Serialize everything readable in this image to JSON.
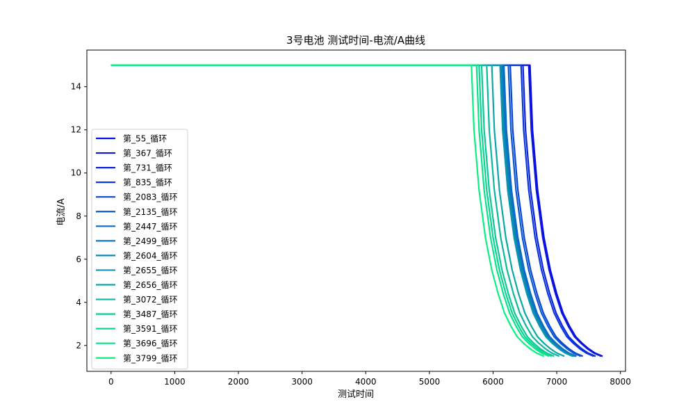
{
  "chart_data": {
    "type": "line",
    "title": "3号电池 测试时间-电流/A曲线",
    "xlabel": "测试时间",
    "ylabel": "电流/A",
    "xlim": [
      -380,
      8080
    ],
    "ylim": [
      0.8,
      15.7
    ],
    "xticks": [
      0,
      1000,
      2000,
      3000,
      4000,
      5000,
      6000,
      7000,
      8000
    ],
    "yticks": [
      2,
      4,
      6,
      8,
      10,
      12,
      14
    ],
    "grid": false,
    "legend_position": "lower-left",
    "series": [
      {
        "name": "第_55_循环",
        "color": "#0a0ce0",
        "values": [
          [
            0,
            15
          ],
          [
            6580,
            15
          ],
          [
            6620,
            12
          ],
          [
            6700,
            9.2
          ],
          [
            6800,
            7.0
          ],
          [
            6900,
            5.5
          ],
          [
            7000,
            4.4
          ],
          [
            7100,
            3.5
          ],
          [
            7200,
            2.9
          ],
          [
            7300,
            2.4
          ],
          [
            7400,
            2.1
          ],
          [
            7500,
            1.85
          ],
          [
            7600,
            1.65
          ],
          [
            7720,
            1.5
          ]
        ]
      },
      {
        "name": "第_367_循环",
        "color": "#0a18e0",
        "values": [
          [
            0,
            15
          ],
          [
            6560,
            15
          ],
          [
            6600,
            12
          ],
          [
            6680,
            9.2
          ],
          [
            6780,
            7.0
          ],
          [
            6880,
            5.5
          ],
          [
            6980,
            4.4
          ],
          [
            7080,
            3.5
          ],
          [
            7180,
            2.9
          ],
          [
            7280,
            2.4
          ],
          [
            7380,
            2.1
          ],
          [
            7480,
            1.85
          ],
          [
            7580,
            1.65
          ],
          [
            7700,
            1.5
          ]
        ]
      },
      {
        "name": "第_731_循环",
        "color": "#0a24e0",
        "values": [
          [
            0,
            15
          ],
          [
            6470,
            15
          ],
          [
            6510,
            12
          ],
          [
            6590,
            9.2
          ],
          [
            6690,
            7.0
          ],
          [
            6790,
            5.5
          ],
          [
            6890,
            4.4
          ],
          [
            6990,
            3.5
          ],
          [
            7090,
            2.9
          ],
          [
            7190,
            2.4
          ],
          [
            7290,
            2.1
          ],
          [
            7390,
            1.85
          ],
          [
            7490,
            1.65
          ],
          [
            7610,
            1.5
          ]
        ]
      },
      {
        "name": "第_835_循环",
        "color": "#0a36dc",
        "values": [
          [
            0,
            15
          ],
          [
            6440,
            15
          ],
          [
            6480,
            12
          ],
          [
            6560,
            9.2
          ],
          [
            6660,
            7.0
          ],
          [
            6760,
            5.5
          ],
          [
            6860,
            4.4
          ],
          [
            6960,
            3.5
          ],
          [
            7060,
            2.9
          ],
          [
            7160,
            2.4
          ],
          [
            7260,
            2.1
          ],
          [
            7360,
            1.85
          ],
          [
            7460,
            1.65
          ],
          [
            7580,
            1.5
          ]
        ]
      },
      {
        "name": "第_2083_循环",
        "color": "#0a46d6",
        "values": [
          [
            0,
            15
          ],
          [
            6270,
            15
          ],
          [
            6310,
            12
          ],
          [
            6390,
            9.2
          ],
          [
            6490,
            7.0
          ],
          [
            6590,
            5.5
          ],
          [
            6690,
            4.4
          ],
          [
            6790,
            3.5
          ],
          [
            6890,
            2.9
          ],
          [
            6990,
            2.4
          ],
          [
            7090,
            2.1
          ],
          [
            7190,
            1.85
          ],
          [
            7290,
            1.65
          ],
          [
            7410,
            1.5
          ]
        ]
      },
      {
        "name": "第_2135_循环",
        "color": "#0a56d0",
        "values": [
          [
            0,
            15
          ],
          [
            6240,
            15
          ],
          [
            6280,
            12
          ],
          [
            6360,
            9.2
          ],
          [
            6460,
            7.0
          ],
          [
            6560,
            5.5
          ],
          [
            6660,
            4.4
          ],
          [
            6760,
            3.5
          ],
          [
            6860,
            2.9
          ],
          [
            6960,
            2.4
          ],
          [
            7060,
            2.1
          ],
          [
            7160,
            1.85
          ],
          [
            7260,
            1.65
          ],
          [
            7380,
            1.5
          ]
        ]
      },
      {
        "name": "第_2447_循环",
        "color": "#0a66c8",
        "values": [
          [
            0,
            15
          ],
          [
            6170,
            15
          ],
          [
            6210,
            12
          ],
          [
            6290,
            9.2
          ],
          [
            6390,
            7.0
          ],
          [
            6490,
            5.5
          ],
          [
            6590,
            4.4
          ],
          [
            6690,
            3.5
          ],
          [
            6790,
            2.9
          ],
          [
            6890,
            2.4
          ],
          [
            6990,
            2.1
          ],
          [
            7090,
            1.85
          ],
          [
            7190,
            1.65
          ],
          [
            7310,
            1.5
          ]
        ]
      },
      {
        "name": "第_2499_循环",
        "color": "#0a76c0",
        "values": [
          [
            0,
            15
          ],
          [
            6150,
            15
          ],
          [
            6190,
            12
          ],
          [
            6270,
            9.2
          ],
          [
            6370,
            7.0
          ],
          [
            6470,
            5.5
          ],
          [
            6570,
            4.4
          ],
          [
            6670,
            3.5
          ],
          [
            6770,
            2.9
          ],
          [
            6870,
            2.4
          ],
          [
            6970,
            2.1
          ],
          [
            7070,
            1.85
          ],
          [
            7170,
            1.65
          ],
          [
            7290,
            1.5
          ]
        ]
      },
      {
        "name": "第_2604_循环",
        "color": "#0a86b8",
        "values": [
          [
            0,
            15
          ],
          [
            6130,
            15
          ],
          [
            6170,
            12
          ],
          [
            6250,
            9.2
          ],
          [
            6350,
            7.0
          ],
          [
            6450,
            5.5
          ],
          [
            6550,
            4.4
          ],
          [
            6650,
            3.5
          ],
          [
            6750,
            2.9
          ],
          [
            6850,
            2.4
          ],
          [
            6950,
            2.1
          ],
          [
            7050,
            1.85
          ],
          [
            7150,
            1.65
          ],
          [
            7270,
            1.5
          ]
        ]
      },
      {
        "name": "第_2655_循环",
        "color": "#0a96b0",
        "values": [
          [
            0,
            15
          ],
          [
            6110,
            15
          ],
          [
            6150,
            12
          ],
          [
            6230,
            9.2
          ],
          [
            6330,
            7.0
          ],
          [
            6430,
            5.5
          ],
          [
            6530,
            4.4
          ],
          [
            6630,
            3.5
          ],
          [
            6730,
            2.9
          ],
          [
            6830,
            2.4
          ],
          [
            6930,
            2.1
          ],
          [
            7030,
            1.85
          ],
          [
            7130,
            1.65
          ],
          [
            7250,
            1.5
          ]
        ]
      },
      {
        "name": "第_2656_循环",
        "color": "#0aa6a8",
        "values": [
          [
            0,
            15
          ],
          [
            5980,
            15
          ],
          [
            6020,
            12
          ],
          [
            6100,
            9.2
          ],
          [
            6200,
            7.0
          ],
          [
            6300,
            5.5
          ],
          [
            6400,
            4.4
          ],
          [
            6500,
            3.5
          ],
          [
            6600,
            2.9
          ],
          [
            6700,
            2.4
          ],
          [
            6800,
            2.1
          ],
          [
            6900,
            1.85
          ],
          [
            7000,
            1.65
          ],
          [
            7120,
            1.5
          ]
        ]
      },
      {
        "name": "第_3072_循环",
        "color": "#0ab8a0",
        "values": [
          [
            0,
            15
          ],
          [
            5900,
            15
          ],
          [
            5940,
            12
          ],
          [
            6020,
            9.2
          ],
          [
            6120,
            7.0
          ],
          [
            6220,
            5.5
          ],
          [
            6320,
            4.4
          ],
          [
            6420,
            3.5
          ],
          [
            6520,
            2.9
          ],
          [
            6620,
            2.4
          ],
          [
            6720,
            2.1
          ],
          [
            6820,
            1.85
          ],
          [
            6920,
            1.65
          ],
          [
            7040,
            1.5
          ]
        ]
      },
      {
        "name": "第_3487_循环",
        "color": "#0ac898",
        "values": [
          [
            0,
            15
          ],
          [
            5820,
            15
          ],
          [
            5860,
            12
          ],
          [
            5940,
            9.2
          ],
          [
            6040,
            7.0
          ],
          [
            6140,
            5.5
          ],
          [
            6240,
            4.4
          ],
          [
            6340,
            3.5
          ],
          [
            6440,
            2.9
          ],
          [
            6540,
            2.4
          ],
          [
            6640,
            2.1
          ],
          [
            6740,
            1.85
          ],
          [
            6840,
            1.65
          ],
          [
            6960,
            1.5
          ]
        ]
      },
      {
        "name": "第_3591_循环",
        "color": "#0ad690",
        "values": [
          [
            0,
            15
          ],
          [
            5780,
            15
          ],
          [
            5820,
            12
          ],
          [
            5900,
            9.2
          ],
          [
            6000,
            7.0
          ],
          [
            6100,
            5.5
          ],
          [
            6200,
            4.4
          ],
          [
            6300,
            3.5
          ],
          [
            6400,
            2.9
          ],
          [
            6500,
            2.4
          ],
          [
            6600,
            2.1
          ],
          [
            6700,
            1.85
          ],
          [
            6800,
            1.65
          ],
          [
            6920,
            1.5
          ]
        ]
      },
      {
        "name": "第_3696_循环",
        "color": "#0ae488",
        "values": [
          [
            0,
            15
          ],
          [
            5740,
            15
          ],
          [
            5780,
            12
          ],
          [
            5860,
            9.2
          ],
          [
            5960,
            7.0
          ],
          [
            6060,
            5.5
          ],
          [
            6160,
            4.4
          ],
          [
            6260,
            3.5
          ],
          [
            6360,
            2.9
          ],
          [
            6460,
            2.4
          ],
          [
            6560,
            2.1
          ],
          [
            6660,
            1.85
          ],
          [
            6760,
            1.65
          ],
          [
            6880,
            1.5
          ]
        ]
      },
      {
        "name": "第_3799_循环",
        "color": "#0af080",
        "values": [
          [
            0,
            15
          ],
          [
            5660,
            15
          ],
          [
            5700,
            12
          ],
          [
            5780,
            9.2
          ],
          [
            5880,
            7.0
          ],
          [
            5980,
            5.5
          ],
          [
            6080,
            4.4
          ],
          [
            6180,
            3.5
          ],
          [
            6280,
            2.9
          ],
          [
            6380,
            2.4
          ],
          [
            6480,
            2.1
          ],
          [
            6580,
            1.85
          ],
          [
            6680,
            1.65
          ],
          [
            6800,
            1.5
          ]
        ]
      }
    ]
  }
}
